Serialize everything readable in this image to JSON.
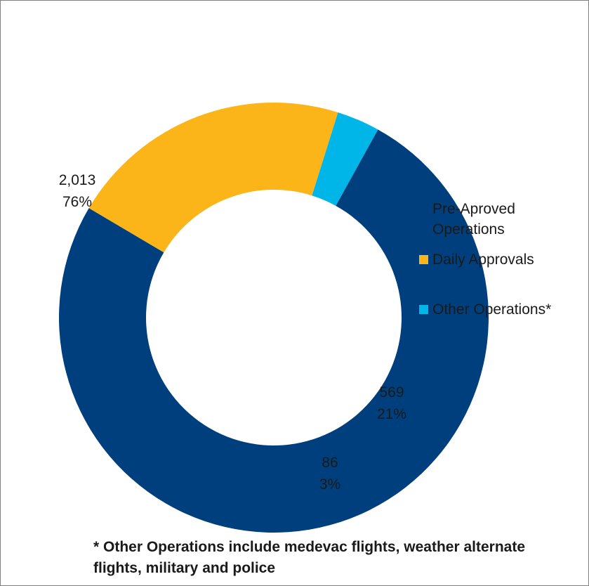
{
  "chart_data": {
    "type": "pie",
    "variant": "donut",
    "legend_position": "right",
    "slices": [
      {
        "name": "Pre-Aproved Operations",
        "name_lines": [
          "Pre-Aproved",
          "Operations"
        ],
        "value": 2013,
        "value_label": "2,013",
        "percent_label": "76%",
        "color": "#003f7d"
      },
      {
        "name": "Daily Approvals",
        "name_lines": [
          "Daily Approvals"
        ],
        "value": 569,
        "value_label": "569",
        "percent_label": "21%",
        "color": "#fbb519"
      },
      {
        "name": "Other Operations*",
        "name_lines": [
          "Other Operations*"
        ],
        "value": 86,
        "value_label": "86",
        "percent_label": "3%",
        "color": "#00b6e9"
      }
    ]
  },
  "footnote": "* Other Operations include medevac flights, weather alternate flights, military and police"
}
